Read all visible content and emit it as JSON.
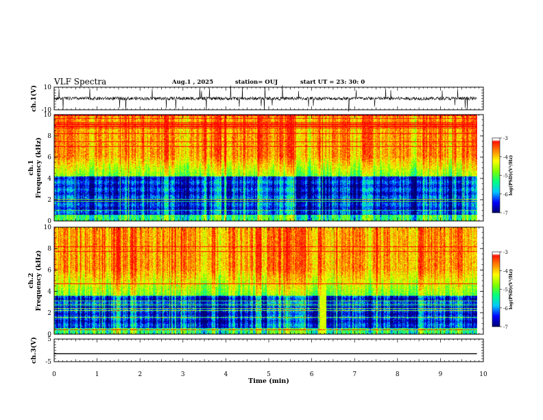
{
  "header": {
    "title": "VLF Spectra",
    "date": "Aug.1  , 2025",
    "station": "station= OUJ",
    "start": "start  UT  =   23: 30: 0"
  },
  "colors": {
    "ramp": [
      "#000070",
      "#0000ff",
      "#00c8ff",
      "#00ff80",
      "#80ff00",
      "#ffff00",
      "#ff8000",
      "#ff0000",
      "#ffffff"
    ]
  },
  "chart_data": [
    {
      "type": "line",
      "ylabel": "ch.1(V)",
      "ylim": [
        -10,
        10
      ],
      "yticks": [
        "10",
        "-10"
      ],
      "series": [
        {
          "description_only": "noisy waveform around 0 V with frequent spikes",
          "baseline": 0
        }
      ]
    },
    {
      "type": "heatmap",
      "ylabel": "ch.1\nFrequency (kHz)",
      "ylabel_lines": [
        "ch.1",
        "Frequency  (kHz)"
      ],
      "ylim": [
        0,
        10
      ],
      "yticks": [
        "0",
        "2",
        "4",
        "6",
        "8",
        "10"
      ],
      "colorbar": {
        "label": "log(PSD)(V²/Hz)",
        "range": [
          -7,
          -3
        ],
        "ticks": [
          "-3",
          "-4",
          "-5",
          "-6",
          "-7"
        ]
      }
    },
    {
      "type": "heatmap",
      "ylabel_lines": [
        "ch.2",
        "Frequency  (kHz)"
      ],
      "ylim": [
        0,
        10
      ],
      "yticks": [
        "0",
        "2",
        "4",
        "6",
        "8",
        "10"
      ],
      "colorbar": {
        "label": "log(PSD)(V²/Hz)",
        "range": [
          -7,
          -3
        ],
        "ticks": [
          "-3",
          "-4",
          "-5",
          "-6",
          "-7"
        ]
      }
    },
    {
      "type": "line",
      "ylabel": "ch.3(V)",
      "ylim": [
        -5,
        5
      ],
      "yticks": [
        "5",
        "-5"
      ],
      "series": [
        {
          "values_constant": -1.5
        }
      ]
    }
  ],
  "xaxis": {
    "label": "Time  (min)",
    "xlim": [
      0,
      10
    ],
    "ticks": [
      "0",
      "1",
      "2",
      "3",
      "4",
      "5",
      "6",
      "7",
      "8",
      "9",
      "10"
    ],
    "data_end": 9.85
  }
}
